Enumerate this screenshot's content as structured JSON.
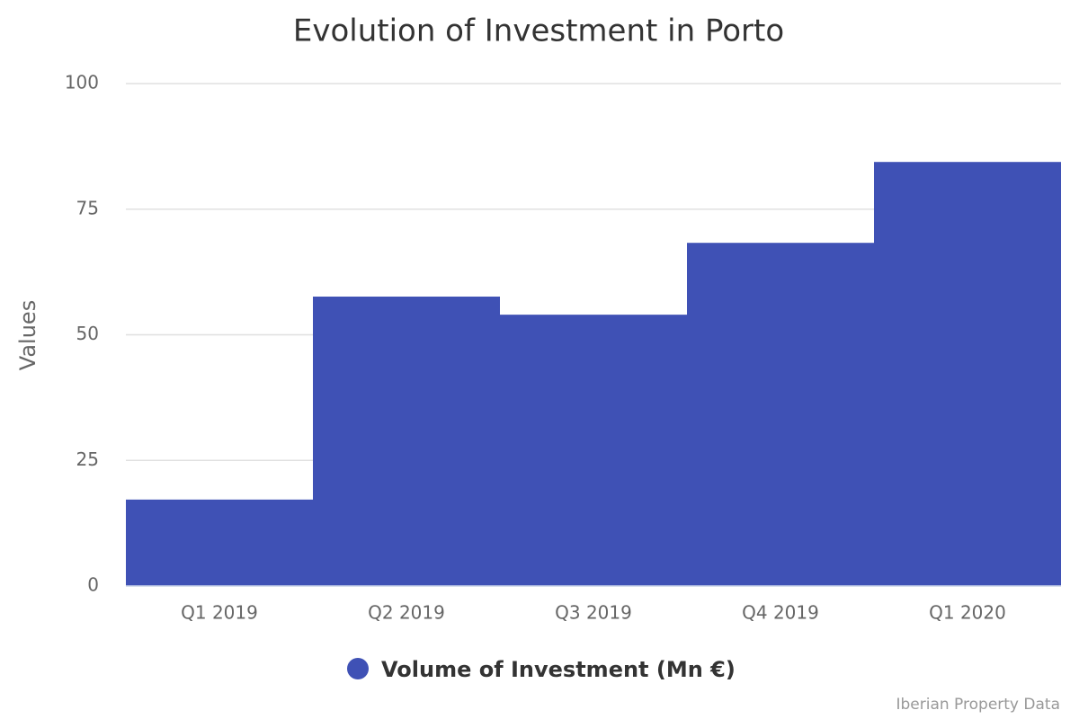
{
  "chart_data": {
    "type": "bar",
    "title": "Evolution of Investment in Porto",
    "categories": [
      "Q1 2019",
      "Q2 2019",
      "Q3 2019",
      "Q4 2019",
      "Q1 2020"
    ],
    "series": [
      {
        "name": "Volume of Investment (Mn €)",
        "color": "#3f51b5",
        "values": [
          17.2,
          57.6,
          54,
          68.3,
          84.4
        ]
      }
    ],
    "y_label": "Values",
    "ylim": [
      0,
      100
    ],
    "yticks": [
      0,
      25,
      50,
      75,
      100
    ],
    "grid": true,
    "legend": "bottom",
    "credit": "Iberian Property Data"
  }
}
